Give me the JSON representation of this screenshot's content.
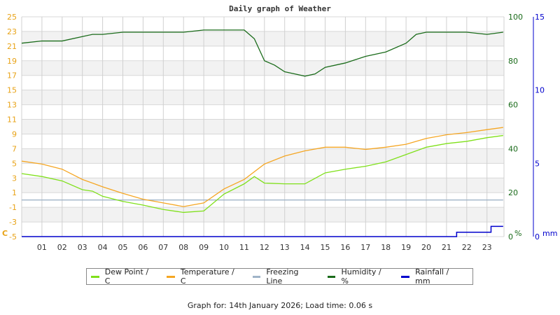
{
  "chart_data": {
    "type": "line",
    "title": "Daily graph of Weather",
    "x_ticks": [
      "01",
      "02",
      "03",
      "04",
      "05",
      "06",
      "07",
      "08",
      "09",
      "10",
      "11",
      "12",
      "13",
      "14",
      "15",
      "16",
      "17",
      "18",
      "19",
      "20",
      "21",
      "22",
      "23"
    ],
    "left_axis": {
      "label": "C",
      "ticks": [
        -5,
        -3,
        -1,
        1,
        3,
        5,
        7,
        9,
        11,
        13,
        15,
        17,
        19,
        21,
        23,
        25
      ],
      "range": [
        -5,
        25
      ],
      "color": "#e8a317"
    },
    "right_axis_humidity": {
      "label": "%",
      "ticks": [
        0,
        20,
        40,
        60,
        80,
        100
      ],
      "range": [
        0,
        100
      ],
      "color": "#1a6b1a"
    },
    "right_axis_rainfall": {
      "label": "mm",
      "ticks": [
        0,
        5,
        10,
        15
      ],
      "range": [
        0,
        15
      ],
      "color": "#0000cc"
    },
    "grid": true,
    "legend_position": "bottom",
    "series": [
      {
        "name": "Dew Point / C",
        "color": "#7fe01a",
        "axis": "left",
        "x": [
          0,
          1,
          2,
          3,
          3.5,
          4,
          5,
          6,
          7,
          8,
          9,
          10,
          11,
          11.5,
          12,
          13,
          14,
          15,
          16,
          17,
          18,
          19,
          20,
          21,
          22,
          23,
          23.8
        ],
        "values": [
          3.6,
          3.2,
          2.6,
          1.4,
          1.2,
          0.5,
          -0.2,
          -0.7,
          -1.3,
          -1.7,
          -1.5,
          0.8,
          2.2,
          3.2,
          2.3,
          2.2,
          2.2,
          3.7,
          4.2,
          4.6,
          5.2,
          6.2,
          7.2,
          7.7,
          8.0,
          8.5,
          8.8
        ]
      },
      {
        "name": "Temperature / C",
        "color": "#f5a623",
        "axis": "left",
        "x": [
          0,
          1,
          2,
          3,
          4,
          5,
          6,
          7,
          8,
          9,
          10,
          11,
          12,
          13,
          14,
          15,
          16,
          17,
          18,
          19,
          20,
          21,
          22,
          23,
          23.8
        ],
        "values": [
          5.3,
          4.9,
          4.2,
          2.8,
          1.8,
          0.9,
          0.1,
          -0.4,
          -0.9,
          -0.4,
          1.5,
          2.8,
          4.9,
          6.0,
          6.7,
          7.2,
          7.2,
          6.9,
          7.2,
          7.6,
          8.4,
          8.9,
          9.2,
          9.6,
          9.9
        ]
      },
      {
        "name": "Freezing Line",
        "color": "#a0b4c8",
        "axis": "left",
        "x": [
          0,
          23.8
        ],
        "values": [
          0,
          0
        ]
      },
      {
        "name": "Humidity / %",
        "color": "#1a6b1a",
        "axis": "humidity",
        "x": [
          0,
          1,
          2,
          3,
          3.5,
          4,
          5,
          6,
          7,
          8,
          9,
          10,
          11,
          11.5,
          12,
          12.5,
          13,
          13.5,
          14,
          14.5,
          15,
          16,
          17,
          18,
          19,
          19.5,
          20,
          21,
          22,
          23,
          23.8
        ],
        "values": [
          88,
          89,
          89,
          91,
          92,
          92,
          93,
          93,
          93,
          93,
          94,
          94,
          94,
          90,
          80,
          78,
          75,
          74,
          73,
          74,
          77,
          79,
          82,
          84,
          88,
          92,
          93,
          93,
          93,
          92,
          93
        ]
      },
      {
        "name": "Rainfall / mm",
        "color": "#0000cc",
        "axis": "rainfall",
        "x": [
          0,
          21,
          21.5,
          22,
          23,
          23.2,
          23.8
        ],
        "values": [
          0,
          0,
          0.3,
          0.3,
          0.3,
          0.7,
          0.7
        ]
      }
    ]
  },
  "legend": {
    "items": [
      {
        "label": "Dew Point / C",
        "color": "#7fe01a"
      },
      {
        "label": "Temperature / C",
        "color": "#f5a623"
      },
      {
        "label": "Freezing Line",
        "color": "#a0b4c8"
      },
      {
        "label": "Humidity / %",
        "color": "#1a6b1a"
      },
      {
        "label": "Rainfall / mm",
        "color": "#0000cc"
      }
    ]
  },
  "footer": {
    "text": "Graph for: 14th January 2026; Load time: 0.06 s"
  }
}
